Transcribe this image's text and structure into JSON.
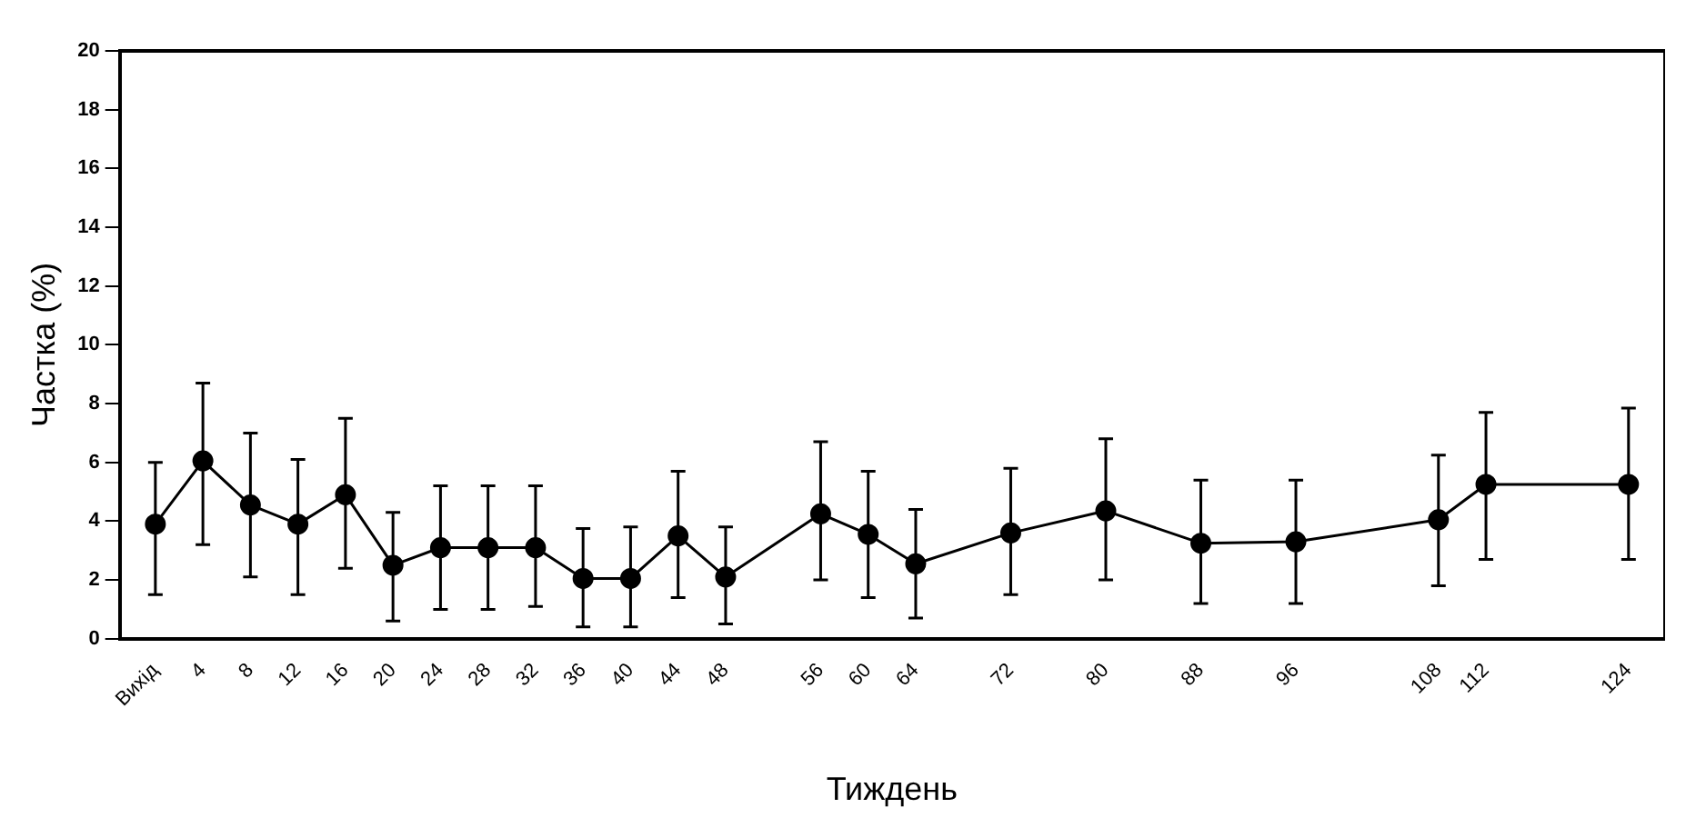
{
  "chart_data": {
    "type": "line",
    "xlabel": "Тиждень",
    "ylabel": "Частка (%)",
    "x": [
      0,
      4,
      8,
      12,
      16,
      20,
      24,
      28,
      32,
      36,
      40,
      44,
      48,
      56,
      60,
      64,
      72,
      80,
      88,
      96,
      108,
      112,
      124
    ],
    "series": [
      {
        "color": "#000000",
        "values": [
          3.9,
          6.05,
          4.55,
          3.9,
          4.9,
          2.5,
          3.1,
          3.1,
          3.1,
          2.05,
          2.05,
          3.5,
          2.1,
          4.25,
          3.55,
          2.55,
          3.6,
          4.35,
          3.25,
          3.3,
          4.05,
          5.25,
          5.25
        ],
        "errors": [
          [
            1.5,
            6.0
          ],
          [
            3.2,
            8.7
          ],
          [
            2.1,
            7.0
          ],
          [
            1.5,
            6.1
          ],
          [
            2.4,
            7.5
          ],
          [
            0.6,
            4.3
          ],
          [
            1.0,
            5.2
          ],
          [
            1.0,
            5.2
          ],
          [
            1.1,
            5.2
          ],
          [
            0.4,
            3.75
          ],
          [
            0.4,
            3.8
          ],
          [
            1.4,
            5.7
          ],
          [
            0.5,
            3.8
          ],
          [
            2.0,
            6.7
          ],
          [
            1.4,
            5.7
          ],
          [
            0.7,
            4.4
          ],
          [
            1.5,
            5.8
          ],
          [
            2.0,
            6.8
          ],
          [
            1.2,
            5.4
          ],
          [
            1.2,
            5.4
          ],
          [
            1.8,
            6.25
          ],
          [
            2.7,
            7.7
          ],
          [
            2.7,
            7.85
          ]
        ]
      }
    ],
    "xlim": [
      -3,
      127
    ],
    "xticks": [
      {
        "value": 0,
        "label": "Вихід"
      },
      4,
      8,
      12,
      16,
      20,
      24,
      28,
      32,
      36,
      40,
      44,
      48,
      56,
      60,
      64,
      72,
      80,
      88,
      96,
      108,
      112,
      124
    ],
    "ylim": [
      0,
      20
    ],
    "yticks": [
      0,
      2,
      4,
      6,
      8,
      10,
      12,
      14,
      16,
      18,
      20
    ],
    "grid": false,
    "legend": false,
    "marker": "circle",
    "line_style": "solid"
  }
}
